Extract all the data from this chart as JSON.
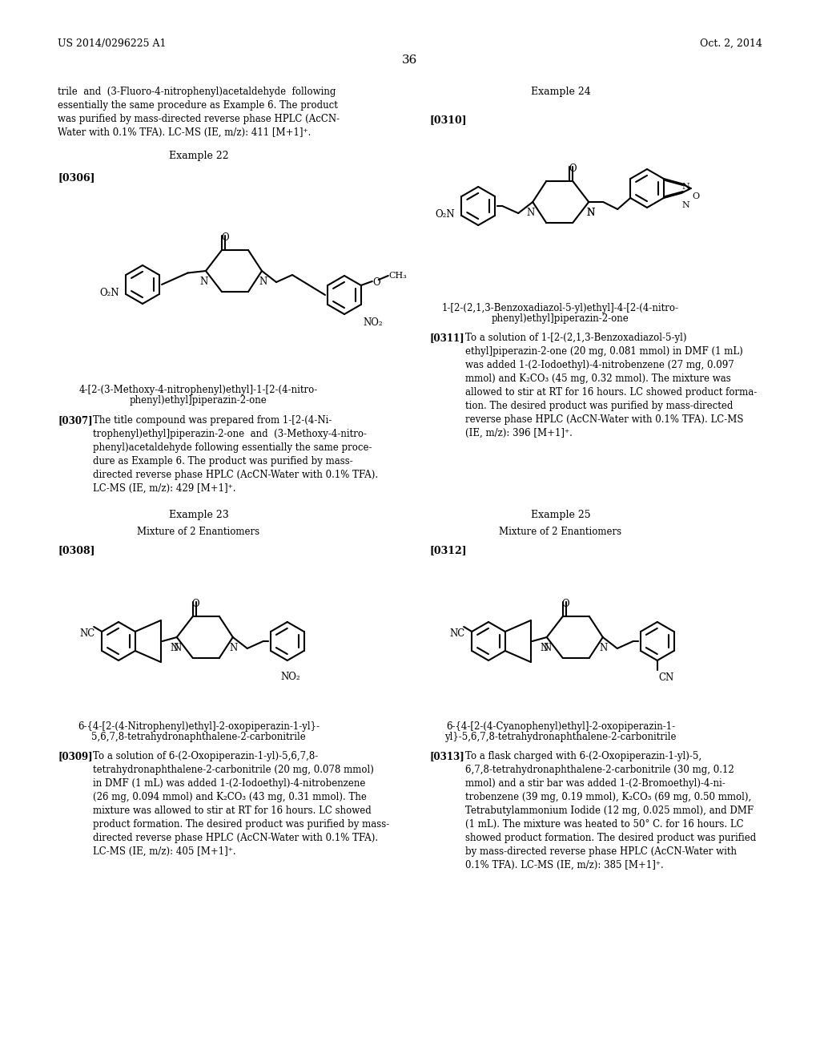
{
  "page_header_left": "US 2014/0296225 A1",
  "page_header_right": "Oct. 2, 2014",
  "page_number": "36",
  "background_color": "#ffffff",
  "left_intro_text": "trile  and  (3-Fluoro-4-nitrophenyl)acetaldehyde  following\nessentially the same procedure as Example 6. The product\nwas purified by mass-directed reverse phase HPLC (AcCN-\nWater with 0.1% TFA). LC-MS (IE, m/z): 411 [M+1]⁺.",
  "example22_heading": "Example 22",
  "example22_ref": "[0306]",
  "compound22_name_1": "4-[2-(3-Methoxy-4-nitrophenyl)ethyl]-1-[2-(4-nitro-",
  "compound22_name_2": "phenyl)ethyl]piperazin-2-one",
  "p0307_tag": "[0307]",
  "p0307_text": "The title compound was prepared from 1-[2-(4-Ni-\ntrophenyl)ethyl]piperazin-2-one  and  (3-Methoxy-4-nitro-\nphenyl)acetaldehyde following essentially the same proce-\ndure as Example 6. The product was purified by mass-\ndirected reverse phase HPLC (AcCN-Water with 0.1% TFA).\nLC-MS (IE, m/z): 429 [M+1]⁺.",
  "example23_heading": "Example 23",
  "example23_mixture": "Mixture of 2 Enantiomers",
  "example23_ref": "[0308]",
  "compound23_name_1": "6-{4-[2-(4-Nitrophenyl)ethyl]-2-oxopiperazin-1-yl}-",
  "compound23_name_2": "5,6,7,8-tetrahydronaphthalene-2-carbonitrile",
  "p0309_tag": "[0309]",
  "p0309_text": "To a solution of 6-(2-Oxopiperazin-1-yl)-5,6,7,8-\ntetrahydronaphthalene-2-carbonitrile (20 mg, 0.078 mmol)\nin DMF (1 mL) was added 1-(2-Iodoethyl)-4-nitrobenzene\n(26 mg, 0.094 mmol) and K₂CO₃ (43 mg, 0.31 mmol). The\nmixture was allowed to stir at RT for 16 hours. LC showed\nproduct formation. The desired product was purified by mass-\ndirected reverse phase HPLC (AcCN-Water with 0.1% TFA).\nLC-MS (IE, m/z): 405 [M+1]⁺.",
  "example24_heading": "Example 24",
  "example24_ref": "[0310]",
  "compound24_name_1": "1-[2-(2,1,3-Benzoxadiazol-5-yl)ethyl]-4-[2-(4-nitro-",
  "compound24_name_2": "phenyl)ethyl]piperazin-2-one",
  "p0311_tag": "[0311]",
  "p0311_text": "To a solution of 1-[2-(2,1,3-Benzoxadiazol-5-yl)\nethyl]piperazin-2-one (20 mg, 0.081 mmol) in DMF (1 mL)\nwas added 1-(2-Iodoethyl)-4-nitrobenzene (27 mg, 0.097\nmmol) and K₂CO₃ (45 mg, 0.32 mmol). The mixture was\nallowed to stir at RT for 16 hours. LC showed product forma-\ntion. The desired product was purified by mass-directed\nreverse phase HPLC (AcCN-Water with 0.1% TFA). LC-MS\n(IE, m/z): 396 [M+1]⁺.",
  "example25_heading": "Example 25",
  "example25_mixture": "Mixture of 2 Enantiomers",
  "example25_ref": "[0312]",
  "compound25_name_1": "6-{4-[2-(4-Cyanophenyl)ethyl]-2-oxopiperazin-1-",
  "compound25_name_2": "yl}-5,6,7,8-tetrahydronaphthalene-2-carbonitrile",
  "p0313_tag": "[0313]",
  "p0313_text": "To a flask charged with 6-(2-Oxopiperazin-1-yl)-5,\n6,7,8-tetrahydronaphthalene-2-carbonitrile (30 mg, 0.12\nmmol) and a stir bar was added 1-(2-Bromoethyl)-4-ni-\ntrobenzene (39 mg, 0.19 mmol), K₂CO₃ (69 mg, 0.50 mmol),\nTetrabutylammonium Iodide (12 mg, 0.025 mmol), and DMF\n(1 mL). The mixture was heated to 50° C. for 16 hours. LC\nshowed product formation. The desired product was purified\nby mass-directed reverse phase HPLC (AcCN-Water with\n0.1% TFA). LC-MS (IE, m/z): 385 [M+1]⁺."
}
